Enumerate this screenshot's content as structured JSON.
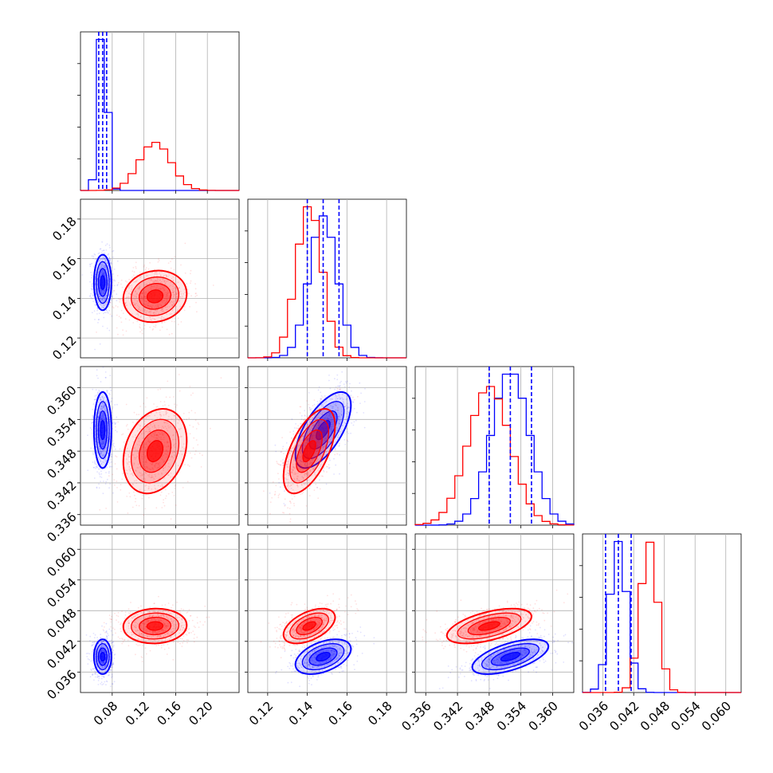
{
  "chart_data": {
    "type": "corner",
    "grid": true,
    "series": [
      {
        "color": "#0000ff",
        "param_means": [
          0.068,
          0.148,
          0.352,
          0.039
        ],
        "param_sds": [
          0.0055,
          0.007,
          0.0036,
          0.0017
        ],
        "quantiles": [
          [
            0.063,
            0.068,
            0.073
          ],
          [
            0.14,
            0.148,
            0.156
          ],
          [
            0.348,
            0.352,
            0.356
          ],
          [
            0.0365,
            0.039,
            0.0415
          ]
        ],
        "show_quantile_lines": true
      },
      {
        "color": "#ff0000",
        "param_means": [
          0.134,
          0.141,
          0.348,
          0.045
        ],
        "param_sds": [
          0.02,
          0.0065,
          0.004,
          0.0017
        ],
        "quantiles": [],
        "show_quantile_lines": false
      }
    ],
    "correlations": {
      "0-1": [
        0.0,
        0.1
      ],
      "0-2": [
        0.0,
        0.25
      ],
      "0-3": [
        0.0,
        0.05
      ],
      "1-2": [
        0.65,
        0.6
      ],
      "1-3": [
        0.45,
        0.5
      ],
      "2-3": [
        0.6,
        0.55
      ]
    },
    "axes": [
      {
        "range": [
          0.04,
          0.24
        ],
        "ticks": [
          0.08,
          0.12,
          0.16,
          0.2
        ],
        "tick_labels": [
          "0.08",
          "0.12",
          "0.16",
          "0.20"
        ]
      },
      {
        "range": [
          0.11,
          0.19
        ],
        "ticks": [
          0.12,
          0.14,
          0.16,
          0.18
        ],
        "tick_labels": [
          "0.12",
          "0.14",
          "0.16",
          "0.18"
        ]
      },
      {
        "range": [
          0.334,
          0.364
        ],
        "ticks": [
          0.336,
          0.342,
          0.348,
          0.354,
          0.36
        ],
        "tick_labels": [
          "0.336",
          "0.342",
          "0.348",
          "0.354",
          "0.360"
        ]
      },
      {
        "range": [
          0.032,
          0.063
        ],
        "ticks": [
          0.036,
          0.042,
          0.048,
          0.054,
          0.06
        ],
        "tick_labels": [
          "0.036",
          "0.042",
          "0.048",
          "0.054",
          "0.060"
        ]
      }
    ],
    "histogram_bins": 20,
    "contour_levels": [
      0.5,
      1.0,
      1.5,
      2.0
    ]
  }
}
